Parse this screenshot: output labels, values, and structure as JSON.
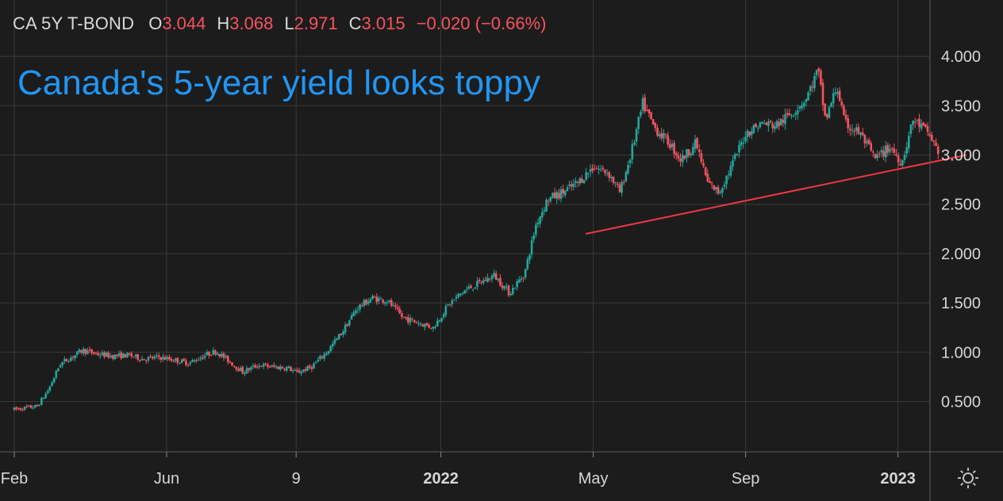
{
  "legend": {
    "symbol": "CA 5Y T-BOND",
    "open_label": "O",
    "open_value": "3.044",
    "high_label": "H",
    "high_value": "3.068",
    "low_label": "L",
    "low_value": "2.971",
    "close_label": "C",
    "close_value": "3.015",
    "change": "−0.020 (−0.66%)"
  },
  "headline": "Canada's 5-year yield looks toppy",
  "colors": {
    "background": "#1c1c1c",
    "up": "#26a69a",
    "down": "#f7525f",
    "grid": "#3a3a3a",
    "trendline": "#f23645",
    "headline": "#2196f3"
  },
  "settings_icon": "gear-icon",
  "chart_data": {
    "type": "candlestick",
    "title": "Canada's 5-year yield looks toppy",
    "series_name": "CA 5Y T-BOND",
    "y_axis_labels": [
      "4.000",
      "3.500",
      "3.000",
      "2.500",
      "2.000",
      "1.500",
      "1.000",
      "0.500"
    ],
    "y_ticks": [
      4.0,
      3.5,
      3.0,
      2.5,
      2.0,
      1.5,
      1.0,
      0.5
    ],
    "ylim": [
      0.0,
      4.45
    ],
    "x_axis_labels": [
      {
        "label": "Feb",
        "t": 0.0,
        "bold": false
      },
      {
        "label": "Jun",
        "t": 4.0,
        "bold": false
      },
      {
        "label": "9",
        "t": 7.4,
        "bold": false
      },
      {
        "label": "2022",
        "t": 11.2,
        "bold": true
      },
      {
        "label": "May",
        "t": 15.2,
        "bold": false
      },
      {
        "label": "Sep",
        "t": 19.2,
        "bold": false
      },
      {
        "label": "2023",
        "t": 23.2,
        "bold": true
      }
    ],
    "x_unit": "months since Feb 2021",
    "xlim": [
      -0.4,
      24.0
    ],
    "close_path": [
      [
        0.0,
        0.42
      ],
      [
        0.6,
        0.45
      ],
      [
        0.9,
        0.62
      ],
      [
        1.2,
        0.88
      ],
      [
        1.5,
        0.95
      ],
      [
        1.8,
        1.02
      ],
      [
        2.2,
        0.98
      ],
      [
        2.6,
        0.96
      ],
      [
        3.0,
        0.97
      ],
      [
        3.4,
        0.93
      ],
      [
        3.8,
        0.95
      ],
      [
        4.2,
        0.92
      ],
      [
        4.6,
        0.89
      ],
      [
        5.0,
        0.97
      ],
      [
        5.3,
        1.01
      ],
      [
        5.6,
        0.92
      ],
      [
        6.0,
        0.8
      ],
      [
        6.4,
        0.87
      ],
      [
        6.8,
        0.85
      ],
      [
        7.2,
        0.84
      ],
      [
        7.4,
        0.79
      ],
      [
        7.8,
        0.85
      ],
      [
        8.2,
        1.0
      ],
      [
        8.6,
        1.2
      ],
      [
        9.0,
        1.45
      ],
      [
        9.4,
        1.55
      ],
      [
        9.8,
        1.52
      ],
      [
        10.2,
        1.35
      ],
      [
        10.6,
        1.3
      ],
      [
        11.0,
        1.25
      ],
      [
        11.4,
        1.48
      ],
      [
        11.8,
        1.62
      ],
      [
        12.2,
        1.7
      ],
      [
        12.6,
        1.78
      ],
      [
        13.0,
        1.6
      ],
      [
        13.4,
        1.8
      ],
      [
        13.7,
        2.3
      ],
      [
        14.0,
        2.55
      ],
      [
        14.4,
        2.62
      ],
      [
        14.8,
        2.72
      ],
      [
        15.2,
        2.88
      ],
      [
        15.6,
        2.82
      ],
      [
        15.9,
        2.62
      ],
      [
        16.2,
        3.02
      ],
      [
        16.5,
        3.52
      ],
      [
        16.8,
        3.28
      ],
      [
        17.2,
        3.12
      ],
      [
        17.5,
        2.95
      ],
      [
        17.9,
        3.12
      ],
      [
        18.2,
        2.72
      ],
      [
        18.5,
        2.62
      ],
      [
        18.8,
        2.86
      ],
      [
        19.2,
        3.22
      ],
      [
        19.6,
        3.32
      ],
      [
        20.0,
        3.3
      ],
      [
        20.4,
        3.42
      ],
      [
        20.8,
        3.58
      ],
      [
        21.1,
        3.86
      ],
      [
        21.3,
        3.35
      ],
      [
        21.6,
        3.7
      ],
      [
        21.8,
        3.32
      ],
      [
        22.2,
        3.22
      ],
      [
        22.6,
        2.96
      ],
      [
        23.0,
        3.08
      ],
      [
        23.3,
        2.92
      ],
      [
        23.6,
        3.36
      ],
      [
        24.0,
        3.22
      ],
      [
        24.3,
        3.01
      ]
    ],
    "trendline": {
      "start": [
        15.0,
        2.2
      ],
      "end": [
        25.0,
        3.0
      ]
    },
    "last_close": 3.015,
    "ohlc_last": {
      "open": 3.044,
      "high": 3.068,
      "low": 2.971,
      "close": 3.015
    }
  }
}
